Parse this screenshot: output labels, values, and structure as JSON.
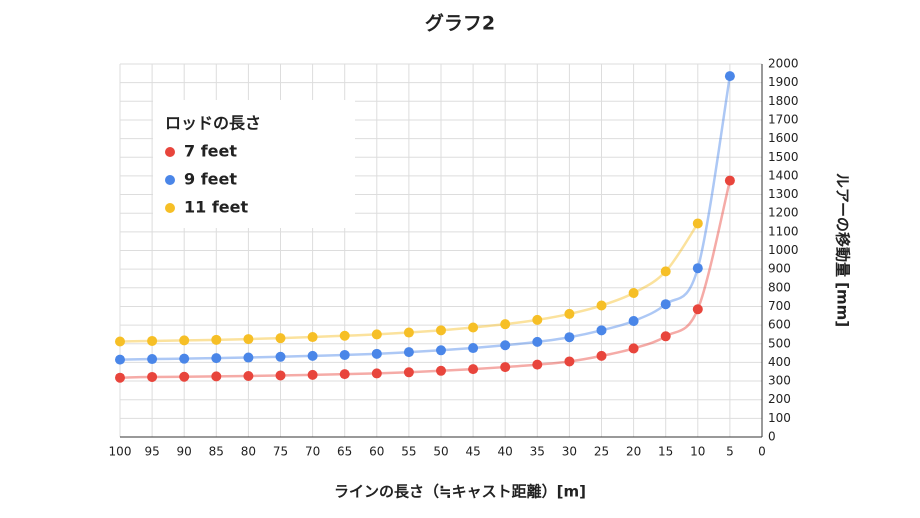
{
  "chart_data": {
    "type": "scatter",
    "title": "グラフ2",
    "x_label": "ラインの長さ（≒キャスト距離）[m]",
    "y_label": "ルアーの移動量 [mm]",
    "legend_title": "ロッドの長さ",
    "x": [
      100,
      95,
      90,
      85,
      80,
      75,
      70,
      65,
      60,
      55,
      50,
      45,
      40,
      35,
      30,
      25,
      20,
      15,
      10,
      5
    ],
    "series": [
      {
        "name": "7 feet",
        "color": "#e8453c",
        "values": [
          318,
          322,
          323,
          325,
          327,
          330,
          333,
          337,
          341,
          347,
          355,
          364,
          375,
          388,
          405,
          435,
          475,
          540,
          685,
          1375
        ]
      },
      {
        "name": "9 feet",
        "color": "#4a86e8",
        "values": [
          415,
          418,
          420,
          423,
          426,
          430,
          435,
          440,
          446,
          455,
          465,
          477,
          492,
          510,
          535,
          572,
          622,
          712,
          905,
          1935
        ]
      },
      {
        "name": "11 feet",
        "color": "#f6bf26",
        "values": [
          512,
          515,
          518,
          521,
          525,
          530,
          536,
          543,
          550,
          560,
          572,
          587,
          605,
          628,
          660,
          705,
          772,
          888,
          1145,
          null
        ]
      }
    ],
    "xlim": [
      100,
      0
    ],
    "xticks": [
      100,
      95,
      90,
      85,
      80,
      75,
      70,
      65,
      60,
      55,
      50,
      45,
      40,
      35,
      30,
      25,
      20,
      15,
      10,
      5,
      0
    ],
    "ylim": [
      0,
      2000
    ],
    "yticks": [
      0,
      100,
      200,
      300,
      400,
      500,
      600,
      700,
      800,
      900,
      1000,
      1100,
      1200,
      1300,
      1400,
      1500,
      1600,
      1700,
      1800,
      1900,
      2000
    ],
    "y_axis_side": "right",
    "grid": true,
    "legend": "top-left"
  }
}
